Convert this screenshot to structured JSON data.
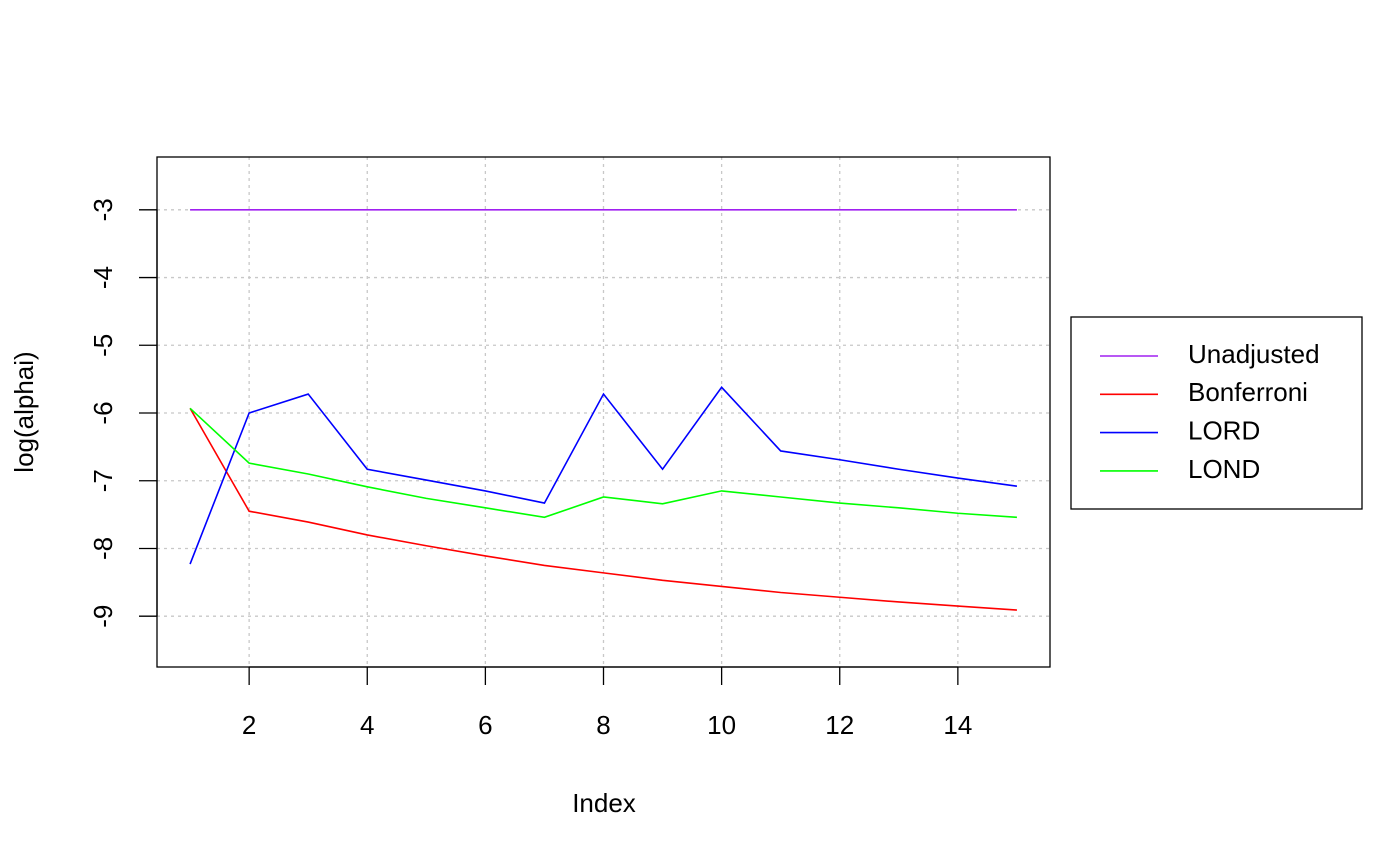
{
  "chart_data": {
    "type": "line",
    "x_label": "Index",
    "y_label": "log(alphai)",
    "x": [
      1,
      2,
      3,
      4,
      5,
      6,
      7,
      8,
      9,
      10,
      11,
      12,
      13,
      14,
      15
    ],
    "series": [
      {
        "name": "Unadjusted",
        "color": "#a020f0",
        "values": [
          -3,
          -3,
          -3,
          -3,
          -3,
          -3,
          -3,
          -3,
          -3,
          -3,
          -3,
          -3,
          -3,
          -3,
          -3
        ]
      },
      {
        "name": "Bonferroni",
        "color": "#ff0000",
        "values": [
          -5.93,
          -7.45,
          -7.61,
          -7.8,
          -7.96,
          -8.11,
          -8.25,
          -8.36,
          -8.47,
          -8.56,
          -8.65,
          -8.72,
          -8.79,
          -8.85,
          -8.91
        ]
      },
      {
        "name": "LORD",
        "color": "#0000ff",
        "values": [
          -8.23,
          -6.0,
          -5.72,
          -6.83,
          -6.99,
          -7.15,
          -7.33,
          -5.72,
          -6.83,
          -5.62,
          -6.56,
          -6.69,
          -6.83,
          -6.96,
          -7.08
        ]
      },
      {
        "name": "LOND",
        "color": "#00ff00",
        "values": [
          -5.93,
          -6.74,
          -6.9,
          -7.09,
          -7.26,
          -7.4,
          -7.54,
          -7.24,
          -7.34,
          -7.15,
          -7.24,
          -7.33,
          -7.4,
          -7.48,
          -7.54
        ]
      }
    ],
    "xlim": [
      0.44,
      15.56
    ],
    "ylim": [
      -9.75,
      -2.22
    ],
    "xticks": [
      2,
      4,
      6,
      8,
      10,
      12,
      14
    ],
    "yticks": [
      -9,
      -8,
      -7,
      -6,
      -5,
      -4,
      -3
    ],
    "grid": true,
    "legend": "right"
  }
}
